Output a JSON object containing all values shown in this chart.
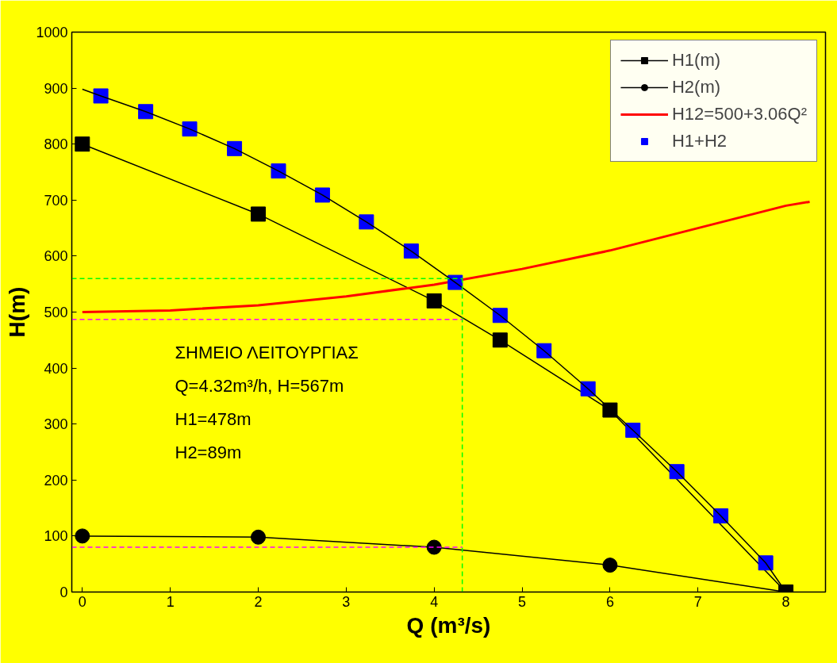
{
  "chart_data": {
    "type": "line",
    "xlabel": "Q (m³/s)",
    "ylabel": "H(m)",
    "xlim": [
      -0.12,
      8.45
    ],
    "ylim": [
      0,
      1000
    ],
    "xticks": [
      0,
      1,
      2,
      3,
      4,
      5,
      6,
      7,
      8
    ],
    "yticks": [
      0,
      100,
      200,
      300,
      400,
      500,
      600,
      700,
      800,
      900,
      1000
    ],
    "grid": false,
    "legend": "top right",
    "series": [
      {
        "name": "H1(m)",
        "color": "#000000",
        "marker": "square",
        "x": [
          0,
          2,
          4,
          4.75,
          6,
          8
        ],
        "values": [
          800,
          675,
          520,
          450,
          325,
          0
        ]
      },
      {
        "name": "H2(m)",
        "color": "#000000",
        "marker": "circle",
        "x": [
          0,
          2,
          4,
          6,
          8
        ],
        "values": [
          100,
          98,
          80,
          48,
          0
        ]
      },
      {
        "name": "H12=500+3.06Q²",
        "color": "#ff0000",
        "marker": "none",
        "x": [
          0,
          1,
          2,
          3,
          4,
          5,
          6,
          7,
          8,
          8.27
        ],
        "values": [
          500,
          503,
          512,
          528,
          549,
          577,
          610,
          650,
          690,
          697
        ]
      },
      {
        "name": "H1+H2",
        "type": "scatter",
        "color": "#0000ff",
        "marker": "square",
        "x": [
          0.21,
          0.72,
          1.22,
          1.73,
          2.23,
          2.73,
          3.23,
          3.74,
          4.24,
          4.75,
          5.25,
          5.75,
          6.26,
          6.76,
          7.26,
          7.77
        ],
        "values": [
          886,
          858,
          827,
          792,
          752,
          709,
          661,
          609,
          553,
          494,
          431,
          363,
          289,
          215,
          136,
          52
        ]
      },
      {
        "color": "#000000",
        "marker": "none",
        "x": [
          0,
          0.21,
          0.72,
          1.22,
          1.73,
          2.23,
          2.73,
          3.23,
          3.74,
          4.24,
          4.75,
          5.25,
          5.75,
          6.26,
          6.76,
          7.26,
          7.77,
          8
        ],
        "values": [
          898,
          886,
          858,
          827,
          792,
          752,
          709,
          661,
          609,
          553,
          494,
          431,
          363,
          289,
          215,
          136,
          52,
          0
        ]
      },
      {
        "color": "#00ff00",
        "marker": "none",
        "line_style": "dashed",
        "x": [
          4.32,
          4.32
        ],
        "values": [
          0,
          560
        ]
      },
      {
        "color": "#00ff00",
        "marker": "none",
        "line_style": "dashed",
        "x": [
          -0.12,
          4.32
        ],
        "values": [
          560,
          560
        ]
      },
      {
        "color": "#ff00ff",
        "marker": "none",
        "line_style": "dashed",
        "x": [
          -0.12,
          4.32
        ],
        "values": [
          487,
          487
        ]
      },
      {
        "color": "#ff00ff",
        "marker": "none",
        "line_style": "dashed",
        "x": [
          -0.12,
          4.32
        ],
        "values": [
          80,
          80
        ]
      }
    ],
    "annotations": [
      "ΣΗΜΕΙΟ ΛΕΙΤΟΥΡΓΙΑΣ",
      "Q=4.32m³/h, H=567m",
      "H1=478m",
      "H2=89m"
    ]
  }
}
